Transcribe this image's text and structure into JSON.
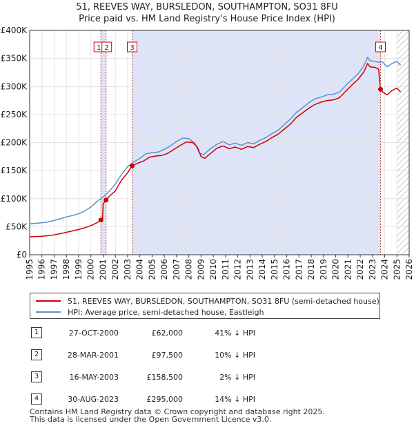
{
  "title": {
    "line1": "51, REEVES WAY, BURSLEDON, SOUTHAMPTON, SO31 8FU",
    "line2": "Price paid vs. HM Land Registry's House Price Index (HPI)"
  },
  "chart_data": {
    "type": "line",
    "title": "Price paid vs. HM Land Registry's House Price Index (HPI)",
    "x_range": [
      1995,
      2026
    ],
    "y_range": [
      0,
      400000
    ],
    "y_ticks": [
      {
        "value": 0,
        "label": "£0"
      },
      {
        "value": 50000,
        "label": "£50K"
      },
      {
        "value": 100000,
        "label": "£100K"
      },
      {
        "value": 150000,
        "label": "£150K"
      },
      {
        "value": 200000,
        "label": "£200K"
      },
      {
        "value": 250000,
        "label": "£250K"
      },
      {
        "value": 300000,
        "label": "£300K"
      },
      {
        "value": 350000,
        "label": "£350K"
      },
      {
        "value": 400000,
        "label": "£400K"
      }
    ],
    "x_ticks": [
      "1995",
      "1996",
      "1997",
      "1998",
      "1999",
      "2000",
      "2001",
      "2002",
      "2003",
      "2004",
      "2005",
      "2006",
      "2007",
      "2008",
      "2009",
      "2010",
      "2011",
      "2012",
      "2013",
      "2014",
      "2015",
      "2016",
      "2017",
      "2018",
      "2019",
      "2020",
      "2021",
      "2022",
      "2023",
      "2024",
      "2025",
      "2026"
    ],
    "grid": true,
    "legend_placement": "below",
    "shaded_ranges": [
      {
        "from": 2000.82,
        "to": 2001.24,
        "color": "#dde4f7"
      },
      {
        "from": 2003.37,
        "to": 2023.66,
        "color": "#dde4f7"
      },
      {
        "from": 2025.0,
        "to": 2026.0,
        "hatch": true
      }
    ],
    "series": [
      {
        "name": "HPI: Average price, semi-detached house, Eastleigh",
        "color": "#5b8fd0",
        "points": [
          [
            1995.0,
            55000
          ],
          [
            1995.5,
            56000
          ],
          [
            1996.0,
            57000
          ],
          [
            1996.5,
            58500
          ],
          [
            1997.0,
            61000
          ],
          [
            1997.5,
            64000
          ],
          [
            1998.0,
            67500
          ],
          [
            1998.5,
            70000
          ],
          [
            1999.0,
            73000
          ],
          [
            1999.5,
            78000
          ],
          [
            2000.0,
            85000
          ],
          [
            2000.5,
            95000
          ],
          [
            2001.0,
            103000
          ],
          [
            2001.5,
            113000
          ],
          [
            2002.0,
            126000
          ],
          [
            2002.5,
            143000
          ],
          [
            2003.0,
            157000
          ],
          [
            2003.5,
            165000
          ],
          [
            2004.0,
            172000
          ],
          [
            2004.5,
            180000
          ],
          [
            2005.0,
            182000
          ],
          [
            2005.5,
            183000
          ],
          [
            2006.0,
            188000
          ],
          [
            2006.5,
            194000
          ],
          [
            2007.0,
            202000
          ],
          [
            2007.5,
            208000
          ],
          [
            2008.0,
            207000
          ],
          [
            2008.5,
            199000
          ],
          [
            2008.85,
            182000
          ],
          [
            2009.2,
            178000
          ],
          [
            2009.7,
            188000
          ],
          [
            2010.3,
            197000
          ],
          [
            2010.8,
            202000
          ],
          [
            2011.3,
            196000
          ],
          [
            2011.8,
            199000
          ],
          [
            2012.3,
            195000
          ],
          [
            2012.8,
            200000
          ],
          [
            2013.3,
            198000
          ],
          [
            2013.8,
            204000
          ],
          [
            2014.3,
            209000
          ],
          [
            2014.8,
            216000
          ],
          [
            2015.3,
            222000
          ],
          [
            2015.8,
            232000
          ],
          [
            2016.3,
            242000
          ],
          [
            2016.8,
            254000
          ],
          [
            2017.3,
            262000
          ],
          [
            2017.8,
            271000
          ],
          [
            2018.3,
            278000
          ],
          [
            2018.8,
            281000
          ],
          [
            2019.3,
            285000
          ],
          [
            2019.8,
            286000
          ],
          [
            2020.3,
            290000
          ],
          [
            2020.8,
            301000
          ],
          [
            2021.3,
            312000
          ],
          [
            2021.8,
            322000
          ],
          [
            2022.3,
            337000
          ],
          [
            2022.6,
            352000
          ],
          [
            2022.8,
            346000
          ],
          [
            2023.2,
            345000
          ],
          [
            2023.5,
            343000
          ],
          [
            2023.8,
            344000
          ],
          [
            2024.2,
            335000
          ],
          [
            2024.6,
            341000
          ],
          [
            2025.0,
            345000
          ],
          [
            2025.3,
            338000
          ]
        ]
      },
      {
        "name": "51, REEVES WAY, BURSLEDON, SOUTHAMPTON, SO31 8FU (semi-detached house)",
        "color": "#cc0000",
        "points": [
          [
            1995.0,
            32000
          ],
          [
            1995.5,
            32500
          ],
          [
            1996.0,
            33000
          ],
          [
            1996.5,
            34000
          ],
          [
            1997.0,
            35500
          ],
          [
            1997.5,
            37500
          ],
          [
            1998.0,
            40000
          ],
          [
            1998.5,
            42500
          ],
          [
            1999.0,
            45000
          ],
          [
            1999.5,
            48000
          ],
          [
            2000.0,
            52000
          ],
          [
            2000.5,
            57000
          ],
          [
            2000.82,
            62000
          ],
          [
            2000.95,
            62000
          ],
          [
            2001.0,
            91000
          ],
          [
            2001.24,
            97500
          ],
          [
            2001.5,
            104000
          ],
          [
            2002.0,
            114000
          ],
          [
            2002.5,
            133000
          ],
          [
            2003.0,
            146000
          ],
          [
            2003.37,
            158500
          ],
          [
            2003.8,
            163000
          ],
          [
            2004.3,
            167000
          ],
          [
            2004.8,
            174000
          ],
          [
            2005.3,
            176000
          ],
          [
            2005.8,
            177000
          ],
          [
            2006.3,
            181000
          ],
          [
            2006.8,
            188000
          ],
          [
            2007.3,
            195000
          ],
          [
            2007.8,
            201000
          ],
          [
            2008.3,
            200000
          ],
          [
            2008.7,
            192000
          ],
          [
            2009.0,
            175000
          ],
          [
            2009.3,
            172000
          ],
          [
            2009.8,
            181000
          ],
          [
            2010.3,
            190000
          ],
          [
            2010.8,
            194000
          ],
          [
            2011.3,
            189000
          ],
          [
            2011.8,
            192000
          ],
          [
            2012.3,
            188000
          ],
          [
            2012.8,
            193000
          ],
          [
            2013.3,
            191000
          ],
          [
            2013.8,
            197000
          ],
          [
            2014.3,
            202000
          ],
          [
            2014.8,
            209000
          ],
          [
            2015.3,
            215000
          ],
          [
            2015.8,
            224000
          ],
          [
            2016.3,
            233000
          ],
          [
            2016.8,
            245000
          ],
          [
            2017.3,
            253000
          ],
          [
            2017.8,
            261000
          ],
          [
            2018.3,
            268000
          ],
          [
            2018.8,
            272000
          ],
          [
            2019.3,
            275000
          ],
          [
            2019.8,
            276000
          ],
          [
            2020.3,
            280000
          ],
          [
            2020.8,
            291000
          ],
          [
            2021.3,
            302000
          ],
          [
            2021.8,
            312000
          ],
          [
            2022.3,
            326000
          ],
          [
            2022.6,
            341000
          ],
          [
            2022.8,
            335000
          ],
          [
            2023.2,
            334000
          ],
          [
            2023.5,
            331000
          ],
          [
            2023.66,
            295000
          ],
          [
            2023.9,
            289000
          ],
          [
            2024.2,
            285000
          ],
          [
            2024.6,
            293000
          ],
          [
            2025.0,
            297000
          ],
          [
            2025.3,
            290000
          ]
        ]
      }
    ],
    "transactions": [
      {
        "id": "1",
        "date": "27-OCT-2000",
        "x": 2000.82,
        "price": 62000,
        "price_label": "£62,000",
        "hpi": "41% ↓ HPI"
      },
      {
        "id": "2",
        "date": "28-MAR-2001",
        "x": 2001.24,
        "price": 97500,
        "price_label": "£97,500",
        "hpi": "10% ↓ HPI"
      },
      {
        "id": "3",
        "date": "16-MAY-2003",
        "x": 2003.37,
        "price": 158500,
        "price_label": "£158,500",
        "hpi": "2% ↓ HPI"
      },
      {
        "id": "4",
        "date": "30-AUG-2023",
        "x": 2023.66,
        "price": 295000,
        "price_label": "£295,000",
        "hpi": "14% ↓ HPI"
      }
    ]
  },
  "legend": {
    "property": "51, REEVES WAY, BURSLEDON, SOUTHAMPTON, SO31 8FU (semi-detached house)",
    "hpi": "HPI: Average price, semi-detached house, Eastleigh",
    "property_color": "#cc0000",
    "hpi_color": "#5b8fd0"
  },
  "footer": {
    "line1": "Contains HM Land Registry data © Crown copyright and database right 2025.",
    "line2": "This data is licensed under the Open Government Licence v3.0."
  }
}
